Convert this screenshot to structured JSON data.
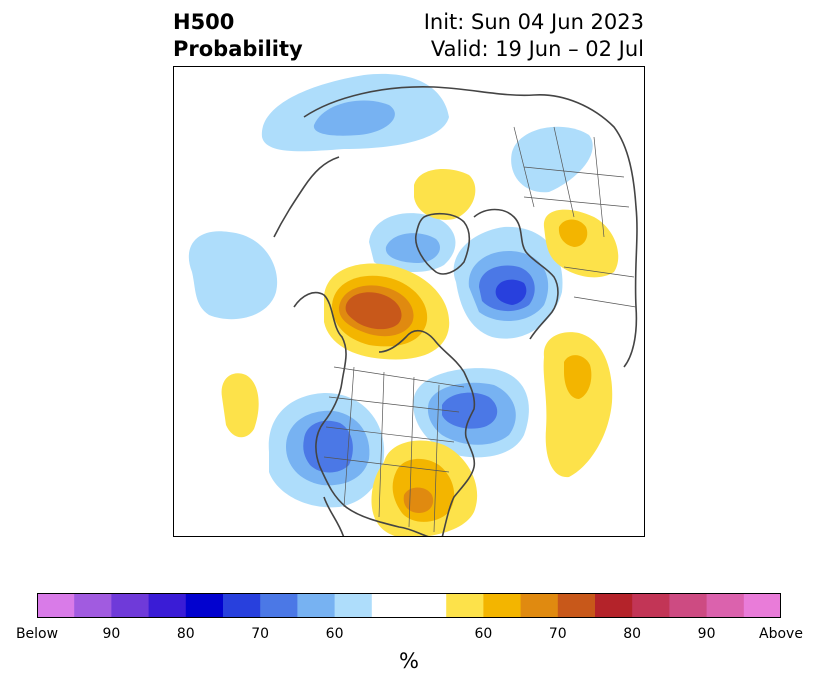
{
  "title": {
    "left_line1": "H500",
    "left_line2": "Probability",
    "right_line1": "Init: Sun 04 Jun 2023",
    "right_line2": "Valid: 19 Jun – 02 Jul"
  },
  "colorbar": {
    "colors": [
      "#d97be8",
      "#a15be0",
      "#6f3ad9",
      "#3a1cd6",
      "#0202cf",
      "#2840dd",
      "#4b78e6",
      "#77b2f2",
      "#aeddfb",
      "#ffffff",
      "#ffffff",
      "#fde24a",
      "#f3b500",
      "#e08a10",
      "#c8581a",
      "#b4232a",
      "#c23556",
      "#cd4b82",
      "#db62ad",
      "#e97cd9"
    ],
    "tick_labels": [
      "Below",
      "90",
      "80",
      "70",
      "60",
      "60",
      "70",
      "80",
      "90",
      "Above"
    ],
    "units": "%"
  },
  "colors": {
    "blue_light": "#aeddfb",
    "blue_mid": "#77b2f2",
    "blue_dark": "#4b78e6",
    "blue_darker": "#2840dd",
    "yellow_light": "#fde24a",
    "yellow_mid": "#f3b500",
    "orange": "#e08a10",
    "orange_dark": "#c8581a",
    "coast": "#444444"
  }
}
